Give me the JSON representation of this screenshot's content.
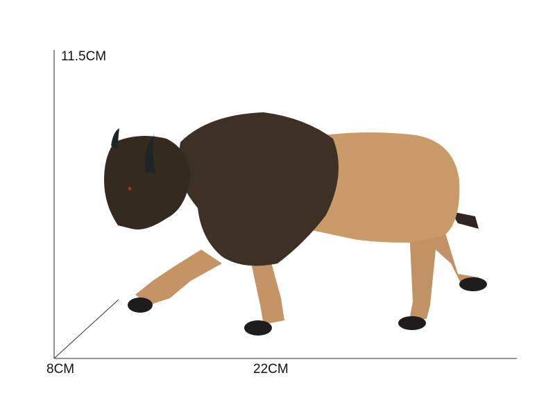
{
  "dimensions": {
    "height_label": "11.5CM",
    "depth_label": "8CM",
    "length_label": "22CM"
  },
  "colors": {
    "fur_dark": "#3d3125",
    "body_tan": "#c49866",
    "hoof": "#1e1c1c",
    "line": "#555555"
  }
}
